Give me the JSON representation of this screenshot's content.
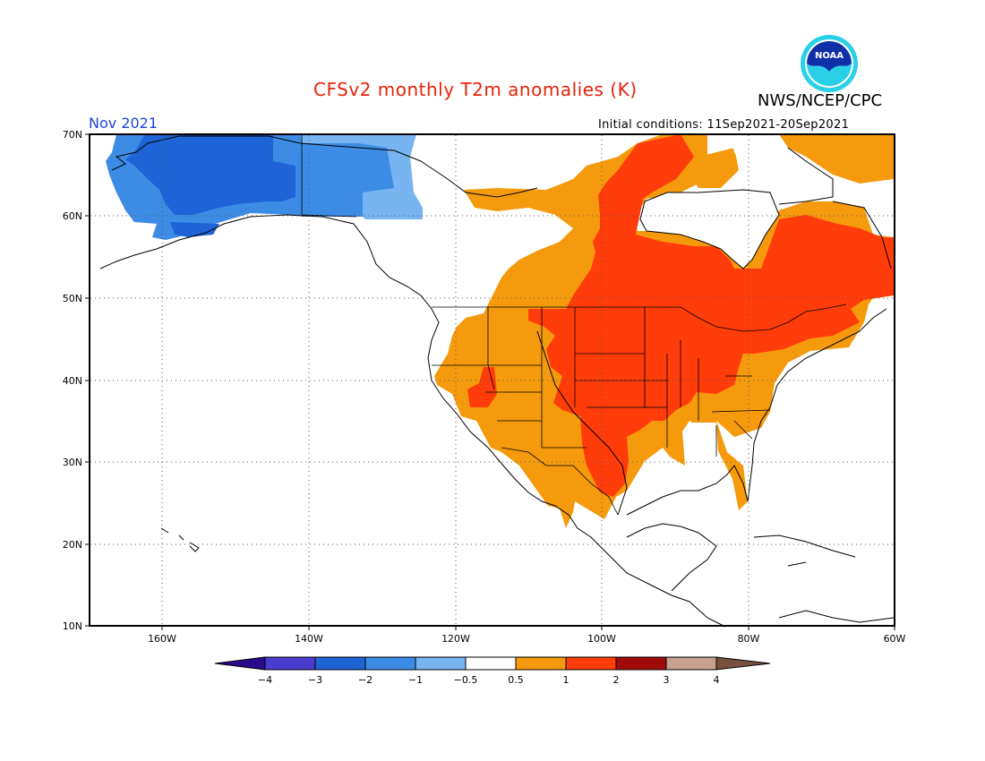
{
  "header": {
    "title": "CFSv2 monthly T2m anomalies (K)",
    "agency": "NWS/NCEP/CPC",
    "period": "Nov 2021",
    "initial_conditions": "Initial conditions: 11Sep2021-20Sep2021",
    "logo_text": "NOAA"
  },
  "map": {
    "lon_range": [
      -172,
      -60
    ],
    "lat_range": [
      10,
      70
    ],
    "lon_ticks": [
      "160W",
      "140W",
      "120W",
      "100W",
      "80W",
      "60W"
    ],
    "lat_ticks": [
      "70N",
      "60N",
      "50N",
      "40N",
      "30N",
      "20N",
      "10N"
    ],
    "gridlines": "dotted"
  },
  "legend": {
    "tick_labels": [
      "-4",
      "-3",
      "-2",
      "-1",
      "-0.5",
      "0.5",
      "1",
      "2",
      "3",
      "4"
    ],
    "colors": [
      "#2a0a8c",
      "#4b3cd0",
      "#1e64d6",
      "#3c8ce6",
      "#78b4f0",
      "#ffffff",
      "#f59a0c",
      "#ff3c0a",
      "#a00a0a",
      "#c8a090",
      "#785040"
    ],
    "bin_labels": [
      "< -4",
      "-4 to -3",
      "-3 to -2",
      "-2 to -1",
      "-1 to -0.5",
      "-0.5 to 0.5",
      "0.5 to 1",
      "1 to 2",
      "2 to 3",
      "3 to 4",
      "> 4"
    ]
  },
  "regions": [
    {
      "name": "alaska-strong-cold",
      "category": "-3 to -2",
      "color": "#1e64d6"
    },
    {
      "name": "alaska-moderate-cold",
      "category": "-2 to -1",
      "color": "#3c8ce6"
    },
    {
      "name": "yukon-weak-cold",
      "category": "-1 to -0.5",
      "color": "#78b4f0"
    },
    {
      "name": "western-us-canada-warm",
      "category": "0.5 to 1",
      "color": "#f59a0c"
    },
    {
      "name": "central-us-canada-warm",
      "category": "1 to 2",
      "color": "#ff3c0a"
    },
    {
      "name": "eastern-canada-warm",
      "category": "1 to 2",
      "color": "#ff3c0a"
    }
  ]
}
